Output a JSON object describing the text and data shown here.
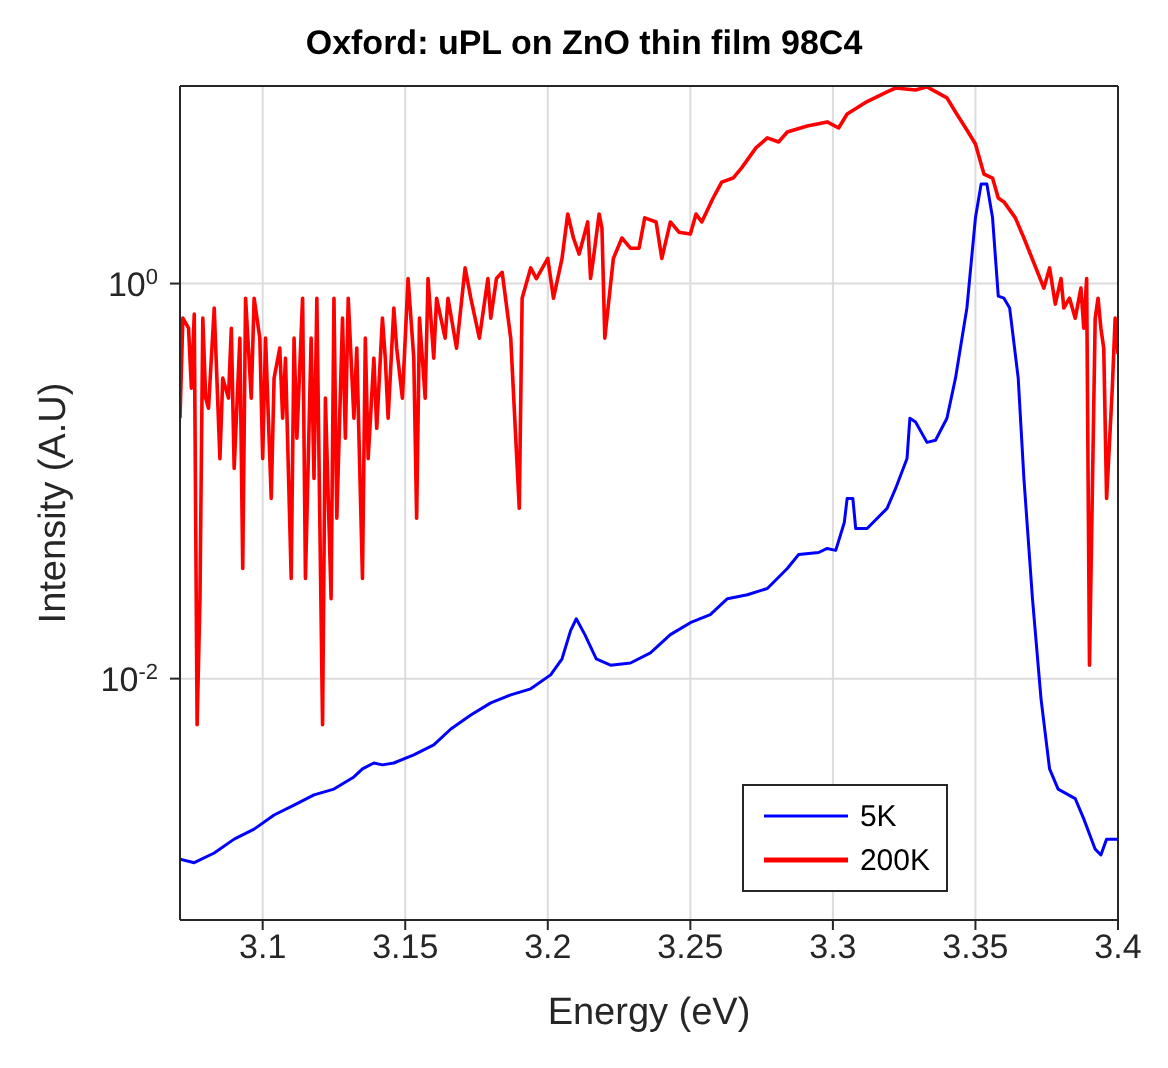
{
  "chart_data": {
    "type": "line",
    "title": "Oxford: uPL on ZnO thin film 98C4",
    "xlabel": "Energy (eV)",
    "ylabel": "Intensity (A.U)",
    "log": "y",
    "grid": true,
    "legend": "bottom right",
    "marker": "none",
    "line_style": "solid",
    "xlim": [
      3.071,
      3.4
    ],
    "xticks": [
      3.1,
      3.15,
      3.2,
      3.25,
      3.3,
      3.35,
      3.4
    ],
    "ylim": [
      0.0006,
      10
    ],
    "yticks": [
      {
        "value": 0.01,
        "label": "10$^{-2}$"
      },
      {
        "value": 1,
        "label": "10$^{0}$"
      }
    ],
    "series": [
      {
        "name": "5K",
        "color": "#0000ff",
        "x": [
          3.071,
          3.076,
          3.083,
          3.09,
          3.097,
          3.104,
          3.111,
          3.118,
          3.125,
          3.132,
          3.135,
          3.139,
          3.142,
          3.146,
          3.153,
          3.16,
          3.166,
          3.173,
          3.18,
          3.187,
          3.194,
          3.201,
          3.205,
          3.208,
          3.21,
          3.213,
          3.217,
          3.222,
          3.229,
          3.236,
          3.243,
          3.25,
          3.257,
          3.263,
          3.27,
          3.277,
          3.284,
          3.288,
          3.295,
          3.298,
          3.301,
          3.304,
          3.305,
          3.307,
          3.308,
          3.312,
          3.319,
          3.322,
          3.326,
          3.327,
          3.329,
          3.333,
          3.336,
          3.34,
          3.343,
          3.347,
          3.35,
          3.352,
          3.354,
          3.356,
          3.358,
          3.36,
          3.362,
          3.365,
          3.367,
          3.37,
          3.373,
          3.376,
          3.379,
          3.385,
          3.388,
          3.392,
          3.394,
          3.396,
          3.4
        ],
        "values": [
          0.00122,
          0.00117,
          0.00131,
          0.00154,
          0.00173,
          0.00204,
          0.00229,
          0.00258,
          0.00276,
          0.00318,
          0.00349,
          0.00374,
          0.00366,
          0.00374,
          0.00411,
          0.00462,
          0.00556,
          0.00655,
          0.00754,
          0.00828,
          0.00888,
          0.01045,
          0.0126,
          0.0175,
          0.0201,
          0.0167,
          0.0126,
          0.0117,
          0.012,
          0.0135,
          0.0167,
          0.0192,
          0.0211,
          0.0254,
          0.0266,
          0.0286,
          0.0361,
          0.0425,
          0.0435,
          0.0456,
          0.0446,
          0.0617,
          0.0817,
          0.0817,
          0.0575,
          0.0575,
          0.0728,
          0.0918,
          0.13,
          0.208,
          0.199,
          0.157,
          0.161,
          0.208,
          0.332,
          0.752,
          2.15,
          3.19,
          3.19,
          2.15,
          0.863,
          0.843,
          0.752,
          0.332,
          0.103,
          0.0254,
          0.0079,
          0.00349,
          0.00276,
          0.00247,
          0.00195,
          0.00137,
          0.00128,
          0.00154,
          0.00154
        ]
      },
      {
        "name": "200K",
        "color": "#ff0000",
        "x": [
          3.071,
          3.072,
          3.074,
          3.075,
          3.076,
          3.077,
          3.078,
          3.079,
          3.08,
          3.081,
          3.083,
          3.085,
          3.086,
          3.088,
          3.089,
          3.09,
          3.092,
          3.093,
          3.094,
          3.096,
          3.097,
          3.099,
          3.1,
          3.101,
          3.103,
          3.104,
          3.106,
          3.107,
          3.108,
          3.11,
          3.111,
          3.112,
          3.114,
          3.115,
          3.117,
          3.118,
          3.119,
          3.121,
          3.122,
          3.124,
          3.125,
          3.126,
          3.128,
          3.129,
          3.13,
          3.132,
          3.133,
          3.135,
          3.136,
          3.137,
          3.139,
          3.14,
          3.142,
          3.143,
          3.144,
          3.146,
          3.147,
          3.149,
          3.151,
          3.153,
          3.154,
          3.155,
          3.157,
          3.158,
          3.16,
          3.161,
          3.164,
          3.165,
          3.168,
          3.171,
          3.173,
          3.176,
          3.179,
          3.18,
          3.182,
          3.184,
          3.187,
          3.19,
          3.191,
          3.194,
          3.196,
          3.2,
          3.202,
          3.205,
          3.207,
          3.209,
          3.211,
          3.214,
          3.215,
          3.216,
          3.218,
          3.219,
          3.22,
          3.223,
          3.226,
          3.229,
          3.232,
          3.234,
          3.238,
          3.24,
          3.243,
          3.246,
          3.25,
          3.252,
          3.254,
          3.258,
          3.261,
          3.265,
          3.268,
          3.273,
          3.277,
          3.281,
          3.284,
          3.291,
          3.298,
          3.302,
          3.305,
          3.312,
          3.319,
          3.322,
          3.329,
          3.333,
          3.34,
          3.343,
          3.347,
          3.35,
          3.353,
          3.356,
          3.358,
          3.36,
          3.364,
          3.367,
          3.371,
          3.374,
          3.376,
          3.378,
          3.38,
          3.381,
          3.383,
          3.385,
          3.387,
          3.388,
          3.389,
          3.39,
          3.392,
          3.393,
          3.394,
          3.395,
          3.396,
          3.398,
          3.399,
          3.4
        ],
        "values": [
          0.208,
          0.668,
          0.594,
          0.295,
          0.7,
          0.00584,
          0.0254,
          0.668,
          0.263,
          0.234,
          0.752,
          0.13,
          0.332,
          0.263,
          0.594,
          0.116,
          0.529,
          0.0361,
          0.843,
          0.263,
          0.843,
          0.529,
          0.13,
          0.529,
          0.0817,
          0.332,
          0.471,
          0.208,
          0.419,
          0.0321,
          0.529,
          0.165,
          0.843,
          0.0321,
          0.529,
          0.103,
          0.843,
          0.00584,
          0.263,
          0.0254,
          0.843,
          0.0648,
          0.668,
          0.165,
          0.843,
          0.208,
          0.471,
          0.0321,
          0.529,
          0.13,
          0.419,
          0.185,
          0.668,
          0.419,
          0.208,
          0.752,
          0.471,
          0.263,
          1.06,
          0.419,
          0.0648,
          0.668,
          0.263,
          1.06,
          0.419,
          0.843,
          0.529,
          0.843,
          0.471,
          1.2,
          0.843,
          0.529,
          1.06,
          0.668,
          1.06,
          1.14,
          0.529,
          0.0728,
          0.843,
          1.2,
          1.06,
          1.34,
          0.843,
          1.34,
          2.25,
          1.7,
          1.41,
          2.05,
          1.06,
          1.34,
          2.25,
          1.91,
          0.529,
          1.34,
          1.7,
          1.51,
          1.51,
          2.15,
          2.05,
          1.34,
          2.05,
          1.82,
          1.78,
          2.25,
          2.05,
          2.71,
          3.26,
          3.42,
          3.85,
          4.86,
          5.46,
          5.21,
          5.85,
          6.28,
          6.58,
          6.13,
          7.22,
          8.34,
          9.33,
          9.77,
          9.55,
          9.9,
          8.71,
          7.39,
          5.99,
          5.09,
          3.58,
          3.42,
          2.71,
          2.59,
          2.15,
          1.7,
          1.22,
          0.948,
          1.2,
          0.787,
          1.06,
          0.752,
          0.843,
          0.668,
          0.948,
          0.594,
          1.06,
          0.0117,
          0.668,
          0.843,
          0.594,
          0.471,
          0.0817,
          0.295,
          0.668,
          0.44
        ]
      }
    ]
  }
}
